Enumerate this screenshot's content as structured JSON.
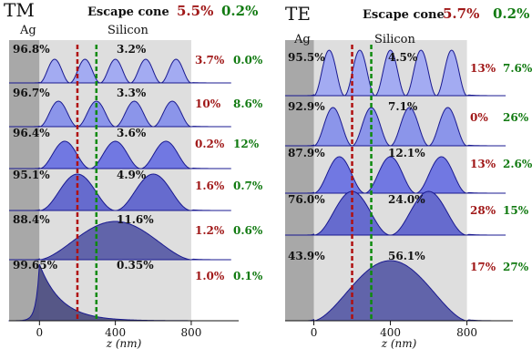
{
  "colors": {
    "escape_red": "#a01818",
    "escape_green": "#117a11",
    "ag_region": "#a8a8a8",
    "si_region": "#dedede",
    "curve_stroke": "#1a1a90",
    "mode_fills": [
      "#9fa8f2",
      "#8690ea",
      "#6a72e2",
      "#5f64cc",
      "#5a5da6",
      "#4e4f82"
    ],
    "red_dashed": "#b01010",
    "green_dashed": "#0e8a0e"
  },
  "chart_data": [
    {
      "type": "line",
      "title": "TM",
      "escape_label": "Escape cone",
      "escape_red": "5.5%",
      "escape_green": "0.2%",
      "region_labels": {
        "ag": "Ag",
        "si": "Silicon"
      },
      "xlabel": "z (nm)",
      "xlim": [
        -160,
        1050
      ],
      "x_ticks": [
        0,
        400,
        800
      ],
      "ag_range": [
        -160,
        0
      ],
      "si_range": [
        0,
        800
      ],
      "dashed_lines": {
        "red": 200,
        "green": 300
      },
      "modes": [
        {
          "ag_pct": "96.8%",
          "si_pct": "3.2%",
          "red_pct": "3.7%",
          "green_pct": "0.0%",
          "lobes": 5
        },
        {
          "ag_pct": "96.7%",
          "si_pct": "3.3%",
          "red_pct": "10%",
          "green_pct": "8.6%",
          "lobes": 4
        },
        {
          "ag_pct": "96.4%",
          "si_pct": "3.6%",
          "red_pct": "0.2%",
          "green_pct": "12%",
          "lobes": 3
        },
        {
          "ag_pct": "95.1%",
          "si_pct": "4.9%",
          "red_pct": "1.6%",
          "green_pct": "0.7%",
          "lobes": 2
        },
        {
          "ag_pct": "88.4%",
          "si_pct": "11.6%",
          "red_pct": "1.2%",
          "green_pct": "0.6%",
          "lobes": 1
        },
        {
          "ag_pct": "99.65%",
          "si_pct": "0.35%",
          "red_pct": "1.0%",
          "green_pct": "0.1%",
          "lobes": 0
        }
      ]
    },
    {
      "type": "line",
      "title": "TE",
      "escape_label": "Escape cone",
      "escape_red": "5.7%",
      "escape_green": "0.2%",
      "region_labels": {
        "ag": "Ag",
        "si": "Silicon"
      },
      "xlabel": "z (nm)",
      "xlim": [
        -150,
        1040
      ],
      "x_ticks": [
        0,
        400,
        800
      ],
      "ag_range": [
        -150,
        0
      ],
      "si_range": [
        0,
        800
      ],
      "dashed_lines": {
        "red": 200,
        "green": 300
      },
      "modes": [
        {
          "ag_pct": "95.5%",
          "si_pct": "4.5%",
          "red_pct": "13%",
          "green_pct": "7.6%",
          "lobes": 5
        },
        {
          "ag_pct": "92.9%",
          "si_pct": "7.1%",
          "red_pct": "0%",
          "green_pct": "26%",
          "lobes": 4
        },
        {
          "ag_pct": "87.9%",
          "si_pct": "12.1%",
          "red_pct": "13%",
          "green_pct": "2.6%",
          "lobes": 3
        },
        {
          "ag_pct": "76.0%",
          "si_pct": "24.0%",
          "red_pct": "28%",
          "green_pct": "15%",
          "lobes": 2
        },
        {
          "ag_pct": "43.9%",
          "si_pct": "56.1%",
          "red_pct": "17%",
          "green_pct": "27%",
          "lobes": 1
        }
      ]
    }
  ]
}
